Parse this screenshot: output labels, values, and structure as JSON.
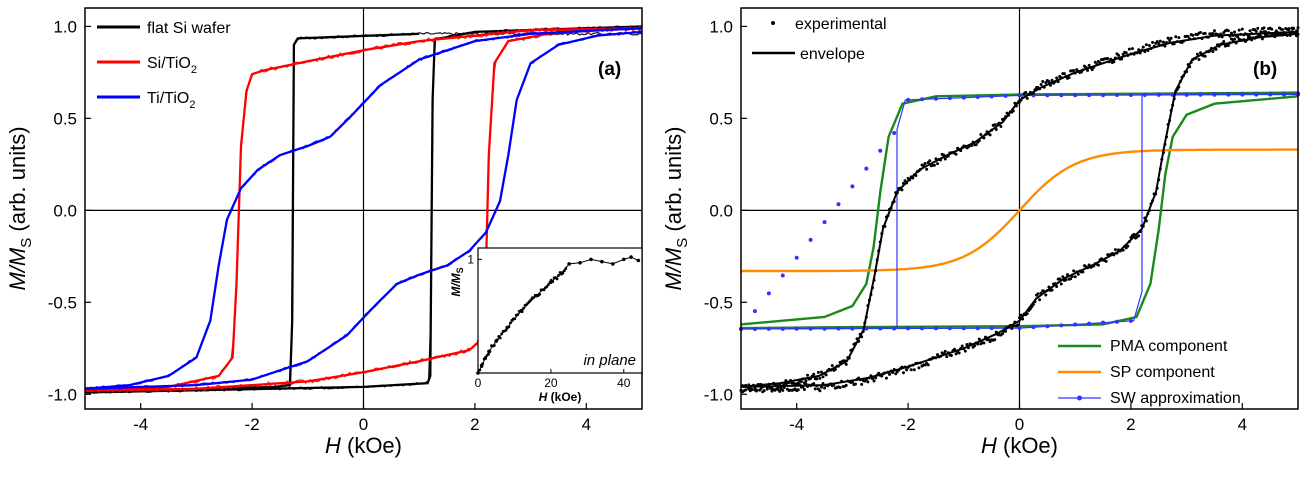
{
  "chart_data": [
    {
      "panel_label": "(a)",
      "type": "line",
      "xlabel": {
        "main": "H",
        "unit": " (kOe)"
      },
      "ylabel": {
        "main": "M/M",
        "sub": "S",
        "unit": " (arb. units)"
      },
      "xlim": [
        -5,
        5
      ],
      "ylim": [
        -1.08,
        1.1
      ],
      "xticks": [
        -4,
        -2,
        0,
        2,
        4
      ],
      "xtick_labels": [
        "-4",
        "-2",
        "0",
        "2",
        "4"
      ],
      "yticks": [
        -1,
        -0.5,
        0,
        0.5,
        1
      ],
      "ytick_labels": [
        "-1.0",
        "-0.5",
        "0.0",
        "0.5",
        "1.0"
      ],
      "legend_position": "top-left",
      "series": [
        {
          "name": "flat Si wafer",
          "legend": {
            "main": "flat Si wafer",
            "sub": ""
          },
          "color": "#000000",
          "noise": 0.007,
          "x": [
            -5,
            -3,
            -1.6,
            -1.32,
            -1.25,
            -1.18,
            -1.0,
            0,
            1.0,
            3,
            5
          ],
          "descending": [
            1.0,
            0.99,
            0.985,
            0.98,
            0.97,
            0.965,
            0.96,
            0.955,
            0.95,
            0.945,
            0.94
          ],
          "switch_down": [
            [
              1.0,
              0.96
            ],
            [
              -1.18,
              0.935
            ],
            [
              -1.25,
              0.9
            ],
            [
              -1.28,
              -0.6
            ],
            [
              -1.32,
              -0.95
            ],
            [
              -1.6,
              -0.96
            ],
            [
              -5,
              -0.99
            ]
          ],
          "switch_up": [
            [
              -5,
              -0.99
            ],
            [
              0,
              -0.96
            ],
            [
              1.15,
              -0.94
            ],
            [
              1.2,
              -0.9
            ],
            [
              1.24,
              0.6
            ],
            [
              1.28,
              0.93
            ],
            [
              2,
              0.97
            ],
            [
              5,
              1.0
            ]
          ]
        },
        {
          "name": "Si/TiO2",
          "legend": {
            "main": "Si/TiO",
            "sub": "2"
          },
          "color": "#ff0000",
          "noise": 0.011,
          "switch_down": [
            [
              5,
              0.99
            ],
            [
              3,
              0.98
            ],
            [
              1,
              0.92
            ],
            [
              0,
              0.87
            ],
            [
              -1,
              0.81
            ],
            [
              -1.8,
              0.76
            ],
            [
              -2.0,
              0.74
            ],
            [
              -2.1,
              0.65
            ],
            [
              -2.2,
              0.35
            ],
            [
              -2.28,
              -0.4
            ],
            [
              -2.35,
              -0.8
            ],
            [
              -2.6,
              -0.9
            ],
            [
              -3.5,
              -0.96
            ],
            [
              -5,
              -0.98
            ]
          ],
          "switch_up": [
            [
              -5,
              -0.98
            ],
            [
              -3,
              -0.97
            ],
            [
              -1,
              -0.93
            ],
            [
              0,
              -0.88
            ],
            [
              1,
              -0.82
            ],
            [
              1.9,
              -0.76
            ],
            [
              2.05,
              -0.72
            ],
            [
              2.15,
              -0.6
            ],
            [
              2.2,
              -0.3
            ],
            [
              2.25,
              0.3
            ],
            [
              2.35,
              0.8
            ],
            [
              2.6,
              0.92
            ],
            [
              3.5,
              0.97
            ],
            [
              5,
              0.99
            ]
          ]
        },
        {
          "name": "Ti/TiO2",
          "legend": {
            "main": "Ti/TiO",
            "sub": "2"
          },
          "color": "#0000ff",
          "noise": 0.008,
          "switch_down": [
            [
              5,
              0.99
            ],
            [
              3,
              0.96
            ],
            [
              2,
              0.92
            ],
            [
              1,
              0.82
            ],
            [
              0.3,
              0.68
            ],
            [
              -0.2,
              0.52
            ],
            [
              -0.6,
              0.4
            ],
            [
              -1.0,
              0.35
            ],
            [
              -1.5,
              0.3
            ],
            [
              -1.9,
              0.22
            ],
            [
              -2.2,
              0.12
            ],
            [
              -2.45,
              -0.05
            ],
            [
              -2.6,
              -0.3
            ],
            [
              -2.75,
              -0.6
            ],
            [
              -3.0,
              -0.8
            ],
            [
              -3.5,
              -0.9
            ],
            [
              -4.2,
              -0.95
            ],
            [
              -5,
              -0.97
            ]
          ],
          "switch_up": [
            [
              -5,
              -0.97
            ],
            [
              -3,
              -0.95
            ],
            [
              -2,
              -0.92
            ],
            [
              -1,
              -0.82
            ],
            [
              -0.3,
              -0.68
            ],
            [
              0.2,
              -0.52
            ],
            [
              0.6,
              -0.4
            ],
            [
              1.0,
              -0.35
            ],
            [
              1.5,
              -0.3
            ],
            [
              1.9,
              -0.22
            ],
            [
              2.2,
              -0.12
            ],
            [
              2.45,
              0.05
            ],
            [
              2.6,
              0.3
            ],
            [
              2.75,
              0.6
            ],
            [
              3.0,
              0.8
            ],
            [
              3.5,
              0.9
            ],
            [
              4.2,
              0.95
            ],
            [
              5,
              0.97
            ]
          ]
        }
      ],
      "inset": {
        "note": "in plane",
        "xlabel": {
          "main": "H",
          "unit": " (kOe)"
        },
        "ylabel": {
          "main": "M/M",
          "sub": "S"
        },
        "xlim": [
          0,
          45
        ],
        "ylim": [
          0,
          1.1
        ],
        "xticks": [
          0,
          20,
          40
        ],
        "xtick_labels": [
          "0",
          "20",
          "40"
        ],
        "yticks": [
          1
        ],
        "ytick_labels": [
          "1"
        ],
        "x": [
          0,
          1,
          2,
          3,
          5,
          8,
          12,
          16,
          20,
          23,
          25,
          28,
          31,
          34,
          37,
          40,
          42,
          44
        ],
        "y": [
          0.0,
          0.06,
          0.13,
          0.19,
          0.28,
          0.4,
          0.55,
          0.68,
          0.8,
          0.88,
          0.96,
          0.97,
          1.0,
          0.98,
          0.96,
          1.0,
          1.02,
          0.99
        ]
      }
    },
    {
      "panel_label": "(b)",
      "type": "line",
      "xlabel": {
        "main": "H",
        "unit": " (kOe)"
      },
      "ylabel": {
        "main": "M/M",
        "sub": "S",
        "unit": " (arb. units)"
      },
      "xlim": [
        -5,
        5
      ],
      "ylim": [
        -1.08,
        1.1
      ],
      "xticks": [
        -4,
        -2,
        0,
        2,
        4
      ],
      "xtick_labels": [
        "-4",
        "-2",
        "0",
        "2",
        "4"
      ],
      "yticks": [
        -1,
        -0.5,
        0,
        0.5,
        1
      ],
      "ytick_labels": [
        "-1.0",
        "-0.5",
        "0.0",
        "0.5",
        "1.0"
      ],
      "legend_top_position": "top-left",
      "legend_bottom_position": "bottom-right",
      "series": [
        {
          "name": "experimental",
          "kind": "points",
          "color": "#000000",
          "switch_down": [
            [
              5,
              0.98
            ],
            [
              3.5,
              0.96
            ],
            [
              2.7,
              0.92
            ],
            [
              2,
              0.86
            ],
            [
              1.0,
              0.75
            ],
            [
              0.4,
              0.68
            ],
            [
              0,
              0.6
            ],
            [
              -0.3,
              0.48
            ],
            [
              -0.8,
              0.37
            ],
            [
              -1.3,
              0.3
            ],
            [
              -1.8,
              0.22
            ],
            [
              -2.2,
              0.1
            ],
            [
              -2.45,
              -0.1
            ],
            [
              -2.6,
              -0.35
            ],
            [
              -2.8,
              -0.65
            ],
            [
              -3.1,
              -0.82
            ],
            [
              -3.6,
              -0.9
            ],
            [
              -4.3,
              -0.95
            ],
            [
              -5,
              -0.97
            ]
          ],
          "switch_up": [
            [
              -5,
              -0.97
            ],
            [
              -3.5,
              -0.96
            ],
            [
              -2.7,
              -0.92
            ],
            [
              -2,
              -0.86
            ],
            [
              -1.0,
              -0.75
            ],
            [
              -0.4,
              -0.68
            ],
            [
              0,
              -0.6
            ],
            [
              0.3,
              -0.48
            ],
            [
              0.8,
              -0.37
            ],
            [
              1.3,
              -0.3
            ],
            [
              1.8,
              -0.22
            ],
            [
              2.2,
              -0.1
            ],
            [
              2.45,
              0.1
            ],
            [
              2.6,
              0.35
            ],
            [
              2.8,
              0.65
            ],
            [
              3.1,
              0.82
            ],
            [
              3.6,
              0.9
            ],
            [
              4.3,
              0.95
            ],
            [
              5,
              0.97
            ]
          ]
        },
        {
          "name": "envelope",
          "kind": "line",
          "color": "#000000",
          "switch_down": [
            [
              5,
              0.97
            ],
            [
              3.5,
              0.95
            ],
            [
              2.7,
              0.91
            ],
            [
              2,
              0.85
            ],
            [
              1.0,
              0.75
            ],
            [
              0.4,
              0.67
            ],
            [
              0,
              0.6
            ],
            [
              -0.3,
              0.48
            ],
            [
              -0.8,
              0.37
            ],
            [
              -1.3,
              0.3
            ],
            [
              -1.8,
              0.22
            ],
            [
              -2.2,
              0.1
            ],
            [
              -2.45,
              -0.1
            ],
            [
              -2.6,
              -0.35
            ],
            [
              -2.8,
              -0.65
            ],
            [
              -3.1,
              -0.82
            ],
            [
              -3.6,
              -0.9
            ],
            [
              -4.3,
              -0.94
            ],
            [
              -5,
              -0.96
            ]
          ],
          "switch_up": [
            [
              -5,
              -0.96
            ],
            [
              -3.5,
              -0.95
            ],
            [
              -2.7,
              -0.91
            ],
            [
              -2,
              -0.85
            ],
            [
              -1.0,
              -0.75
            ],
            [
              -0.4,
              -0.67
            ],
            [
              0,
              -0.6
            ],
            [
              0.3,
              -0.48
            ],
            [
              0.8,
              -0.37
            ],
            [
              1.3,
              -0.3
            ],
            [
              1.8,
              -0.22
            ],
            [
              2.2,
              -0.1
            ],
            [
              2.45,
              0.1
            ],
            [
              2.6,
              0.35
            ],
            [
              2.8,
              0.65
            ],
            [
              3.1,
              0.82
            ],
            [
              3.6,
              0.9
            ],
            [
              4.3,
              0.94
            ],
            [
              5,
              0.96
            ]
          ]
        },
        {
          "name": "PMA component",
          "kind": "line",
          "color": "#1a8a1a",
          "switch_down": [
            [
              5,
              0.64
            ],
            [
              3,
              0.635
            ],
            [
              0,
              0.63
            ],
            [
              -1.5,
              0.62
            ],
            [
              -2.1,
              0.58
            ],
            [
              -2.35,
              0.4
            ],
            [
              -2.5,
              0.1
            ],
            [
              -2.62,
              -0.2
            ],
            [
              -2.75,
              -0.4
            ],
            [
              -3.0,
              -0.52
            ],
            [
              -3.5,
              -0.58
            ],
            [
              -5,
              -0.62
            ]
          ],
          "switch_up": [
            [
              -5,
              -0.64
            ],
            [
              -3,
              -0.635
            ],
            [
              0,
              -0.63
            ],
            [
              1.5,
              -0.62
            ],
            [
              2.1,
              -0.58
            ],
            [
              2.35,
              -0.4
            ],
            [
              2.5,
              -0.1
            ],
            [
              2.62,
              0.2
            ],
            [
              2.75,
              0.4
            ],
            [
              3.0,
              0.52
            ],
            [
              3.5,
              0.58
            ],
            [
              5,
              0.62
            ]
          ]
        },
        {
          "name": "SP component",
          "kind": "line",
          "color": "#ff8c00",
          "saturation": 0.33,
          "field_scale": 1.0,
          "saturation_sign": 1
        },
        {
          "name": "SW approximation",
          "kind": "line-points",
          "color": "#3333ff",
          "switch_down": [
            [
              5,
              0.63
            ],
            [
              0,
              0.625
            ],
            [
              -2.05,
              0.6
            ],
            [
              -2.2,
              0.44
            ],
            [
              -2.2,
              -0.64
            ],
            [
              -5,
              -0.645
            ]
          ],
          "switch_up": [
            [
              -5,
              -0.645
            ],
            [
              0,
              -0.64
            ],
            [
              2.05,
              -0.6
            ],
            [
              2.2,
              -0.44
            ],
            [
              2.2,
              0.63
            ],
            [
              5,
              0.635
            ]
          ]
        }
      ]
    }
  ]
}
